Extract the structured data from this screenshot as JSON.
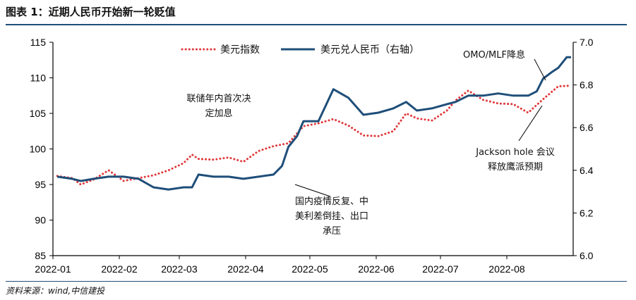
{
  "figure": {
    "title": "图表 1：近期人民币开始新一轮贬值",
    "source": "资料来源：wind,中信建投"
  },
  "colors": {
    "usd_index": "#e0383a",
    "usdcny": "#1f4e79",
    "rule": "#1f4e79"
  },
  "chart_data": {
    "type": "line",
    "x_tick_labels": [
      "2022-01",
      "2022-02",
      "2022-03",
      "2022-04",
      "2022-05",
      "2022-06",
      "2022-07",
      "2022-08"
    ],
    "y_left": {
      "ticks": [
        "85",
        "90",
        "95",
        "100",
        "105",
        "110",
        "115"
      ],
      "lim": [
        85,
        115
      ]
    },
    "y_right": {
      "ticks": [
        "6.0",
        "6.2",
        "6.4",
        "6.6",
        "6.8",
        "7.0"
      ],
      "lim": [
        6.0,
        7.0
      ]
    },
    "series": [
      {
        "name": "美元指数",
        "axis": "left",
        "style": "dotted",
        "x": [
          "2022-01-03",
          "2022-01-10",
          "2022-01-14",
          "2022-01-20",
          "2022-01-27",
          "2022-02-03",
          "2022-02-10",
          "2022-02-17",
          "2022-02-24",
          "2022-03-03",
          "2022-03-07",
          "2022-03-10",
          "2022-03-17",
          "2022-03-24",
          "2022-03-31",
          "2022-04-07",
          "2022-04-14",
          "2022-04-21",
          "2022-04-28",
          "2022-05-05",
          "2022-05-12",
          "2022-05-19",
          "2022-05-26",
          "2022-06-02",
          "2022-06-09",
          "2022-06-15",
          "2022-06-20",
          "2022-06-27",
          "2022-07-04",
          "2022-07-08",
          "2022-07-14",
          "2022-07-21",
          "2022-07-28",
          "2022-08-04",
          "2022-08-11",
          "2022-08-18",
          "2022-08-25",
          "2022-08-31"
        ],
        "values": [
          96.2,
          95.9,
          95.0,
          95.7,
          97.0,
          95.5,
          95.9,
          96.3,
          97.0,
          98.0,
          99.2,
          98.6,
          98.5,
          98.8,
          98.2,
          99.7,
          100.4,
          100.8,
          103.2,
          103.6,
          104.2,
          103.3,
          101.9,
          101.8,
          102.5,
          105.0,
          104.3,
          104.0,
          105.4,
          106.8,
          108.2,
          106.9,
          106.4,
          106.3,
          105.1,
          107.0,
          108.8,
          108.9
        ]
      },
      {
        "name": "美元兑人民币（右轴）",
        "axis": "right",
        "style": "solid",
        "x": [
          "2022-01-03",
          "2022-01-10",
          "2022-01-14",
          "2022-01-20",
          "2022-01-27",
          "2022-02-03",
          "2022-02-10",
          "2022-02-17",
          "2022-02-24",
          "2022-03-03",
          "2022-03-07",
          "2022-03-10",
          "2022-03-17",
          "2022-03-24",
          "2022-03-31",
          "2022-04-07",
          "2022-04-14",
          "2022-04-18",
          "2022-04-21",
          "2022-04-25",
          "2022-04-28",
          "2022-05-05",
          "2022-05-12",
          "2022-05-19",
          "2022-05-26",
          "2022-06-02",
          "2022-06-09",
          "2022-06-15",
          "2022-06-20",
          "2022-06-27",
          "2022-07-04",
          "2022-07-08",
          "2022-07-14",
          "2022-07-21",
          "2022-07-28",
          "2022-08-04",
          "2022-08-11",
          "2022-08-15",
          "2022-08-18",
          "2022-08-22",
          "2022-08-25",
          "2022-08-29",
          "2022-08-31"
        ],
        "values": [
          6.37,
          6.36,
          6.35,
          6.36,
          6.37,
          6.37,
          6.36,
          6.32,
          6.31,
          6.32,
          6.32,
          6.38,
          6.37,
          6.37,
          6.36,
          6.37,
          6.38,
          6.42,
          6.51,
          6.56,
          6.63,
          6.63,
          6.78,
          6.74,
          6.66,
          6.67,
          6.69,
          6.72,
          6.68,
          6.69,
          6.71,
          6.72,
          6.75,
          6.75,
          6.76,
          6.75,
          6.75,
          6.77,
          6.83,
          6.86,
          6.88,
          6.93,
          6.93
        ]
      }
    ],
    "annotations": [
      {
        "text": [
          "联储年内首次决",
          "定加息"
        ]
      },
      {
        "text": [
          "国内疫情反复、中",
          "美利差倒挂、出口",
          "承压"
        ]
      },
      {
        "text": [
          "OMO/MLF降息"
        ]
      },
      {
        "text": [
          "Jackson hole 会议",
          "释放鹰派预期"
        ]
      }
    ],
    "legend_position": "top"
  }
}
